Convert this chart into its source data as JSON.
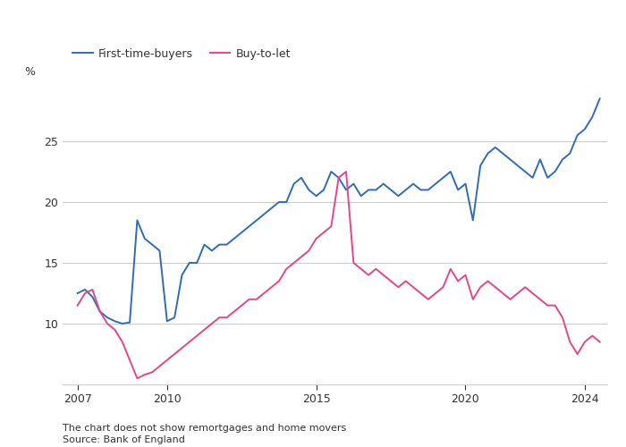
{
  "ylabel": "%",
  "footnote1": "The chart does not show remortgages and home movers",
  "footnote2": "Source: Bank of England",
  "background_color": "#ffffff",
  "plot_bg_color": "#ffffff",
  "text_color": "#333333",
  "grid_color": "#cccccc",
  "ftb_color": "#2e6db4",
  "btl_color": "#e8448a",
  "xlim_start": 2006.5,
  "xlim_end": 2024.75,
  "ylim": [
    5,
    30
  ],
  "yticks": [
    10,
    15,
    20,
    25
  ],
  "xticks": [
    2007,
    2010,
    2015,
    2020,
    2024
  ],
  "ftb_data": [
    [
      2007.0,
      12.5
    ],
    [
      2007.25,
      12.8
    ],
    [
      2007.5,
      12.2
    ],
    [
      2007.75,
      11.0
    ],
    [
      2008.0,
      10.5
    ],
    [
      2008.25,
      10.2
    ],
    [
      2008.5,
      10.0
    ],
    [
      2008.75,
      10.1
    ],
    [
      2009.0,
      18.5
    ],
    [
      2009.25,
      17.0
    ],
    [
      2009.5,
      16.5
    ],
    [
      2009.75,
      16.0
    ],
    [
      2010.0,
      10.2
    ],
    [
      2010.25,
      10.5
    ],
    [
      2010.5,
      14.0
    ],
    [
      2010.75,
      15.0
    ],
    [
      2011.0,
      15.0
    ],
    [
      2011.25,
      16.5
    ],
    [
      2011.5,
      16.0
    ],
    [
      2011.75,
      16.5
    ],
    [
      2012.0,
      16.5
    ],
    [
      2012.25,
      17.0
    ],
    [
      2012.5,
      17.5
    ],
    [
      2012.75,
      18.0
    ],
    [
      2013.0,
      18.5
    ],
    [
      2013.25,
      19.0
    ],
    [
      2013.5,
      19.5
    ],
    [
      2013.75,
      20.0
    ],
    [
      2014.0,
      20.0
    ],
    [
      2014.25,
      21.5
    ],
    [
      2014.5,
      22.0
    ],
    [
      2014.75,
      21.0
    ],
    [
      2015.0,
      20.5
    ],
    [
      2015.25,
      21.0
    ],
    [
      2015.5,
      22.5
    ],
    [
      2015.75,
      22.0
    ],
    [
      2016.0,
      21.0
    ],
    [
      2016.25,
      21.5
    ],
    [
      2016.5,
      20.5
    ],
    [
      2016.75,
      21.0
    ],
    [
      2017.0,
      21.0
    ],
    [
      2017.25,
      21.5
    ],
    [
      2017.5,
      21.0
    ],
    [
      2017.75,
      20.5
    ],
    [
      2018.0,
      21.0
    ],
    [
      2018.25,
      21.5
    ],
    [
      2018.5,
      21.0
    ],
    [
      2018.75,
      21.0
    ],
    [
      2019.0,
      21.5
    ],
    [
      2019.25,
      22.0
    ],
    [
      2019.5,
      22.5
    ],
    [
      2019.75,
      21.0
    ],
    [
      2020.0,
      21.5
    ],
    [
      2020.25,
      18.5
    ],
    [
      2020.5,
      23.0
    ],
    [
      2020.75,
      24.0
    ],
    [
      2021.0,
      24.5
    ],
    [
      2021.25,
      24.0
    ],
    [
      2021.5,
      23.5
    ],
    [
      2021.75,
      23.0
    ],
    [
      2022.0,
      22.5
    ],
    [
      2022.25,
      22.0
    ],
    [
      2022.5,
      23.5
    ],
    [
      2022.75,
      22.0
    ],
    [
      2023.0,
      22.5
    ],
    [
      2023.25,
      23.5
    ],
    [
      2023.5,
      24.0
    ],
    [
      2023.75,
      25.5
    ],
    [
      2024.0,
      26.0
    ],
    [
      2024.25,
      27.0
    ],
    [
      2024.5,
      28.5
    ]
  ],
  "btl_data": [
    [
      2007.0,
      11.5
    ],
    [
      2007.25,
      12.5
    ],
    [
      2007.5,
      12.8
    ],
    [
      2007.75,
      11.0
    ],
    [
      2008.0,
      10.0
    ],
    [
      2008.25,
      9.5
    ],
    [
      2008.5,
      8.5
    ],
    [
      2008.75,
      7.0
    ],
    [
      2009.0,
      5.5
    ],
    [
      2009.25,
      5.8
    ],
    [
      2009.5,
      6.0
    ],
    [
      2009.75,
      6.5
    ],
    [
      2010.0,
      7.0
    ],
    [
      2010.25,
      7.5
    ],
    [
      2010.5,
      8.0
    ],
    [
      2010.75,
      8.5
    ],
    [
      2011.0,
      9.0
    ],
    [
      2011.25,
      9.5
    ],
    [
      2011.5,
      10.0
    ],
    [
      2011.75,
      10.5
    ],
    [
      2012.0,
      10.5
    ],
    [
      2012.25,
      11.0
    ],
    [
      2012.5,
      11.5
    ],
    [
      2012.75,
      12.0
    ],
    [
      2013.0,
      12.0
    ],
    [
      2013.25,
      12.5
    ],
    [
      2013.5,
      13.0
    ],
    [
      2013.75,
      13.5
    ],
    [
      2014.0,
      14.5
    ],
    [
      2014.25,
      15.0
    ],
    [
      2014.5,
      15.5
    ],
    [
      2014.75,
      16.0
    ],
    [
      2015.0,
      17.0
    ],
    [
      2015.25,
      17.5
    ],
    [
      2015.5,
      18.0
    ],
    [
      2015.75,
      22.0
    ],
    [
      2016.0,
      22.5
    ],
    [
      2016.25,
      15.0
    ],
    [
      2016.5,
      14.5
    ],
    [
      2016.75,
      14.0
    ],
    [
      2017.0,
      14.5
    ],
    [
      2017.25,
      14.0
    ],
    [
      2017.5,
      13.5
    ],
    [
      2017.75,
      13.0
    ],
    [
      2018.0,
      13.5
    ],
    [
      2018.25,
      13.0
    ],
    [
      2018.5,
      12.5
    ],
    [
      2018.75,
      12.0
    ],
    [
      2019.0,
      12.5
    ],
    [
      2019.25,
      13.0
    ],
    [
      2019.5,
      14.5
    ],
    [
      2019.75,
      13.5
    ],
    [
      2020.0,
      14.0
    ],
    [
      2020.25,
      12.0
    ],
    [
      2020.5,
      13.0
    ],
    [
      2020.75,
      13.5
    ],
    [
      2021.0,
      13.0
    ],
    [
      2021.25,
      12.5
    ],
    [
      2021.5,
      12.0
    ],
    [
      2021.75,
      12.5
    ],
    [
      2022.0,
      13.0
    ],
    [
      2022.25,
      12.5
    ],
    [
      2022.5,
      12.0
    ],
    [
      2022.75,
      11.5
    ],
    [
      2023.0,
      11.5
    ],
    [
      2023.25,
      10.5
    ],
    [
      2023.5,
      8.5
    ],
    [
      2023.75,
      7.5
    ],
    [
      2024.0,
      8.5
    ],
    [
      2024.25,
      9.0
    ],
    [
      2024.5,
      8.5
    ]
  ]
}
